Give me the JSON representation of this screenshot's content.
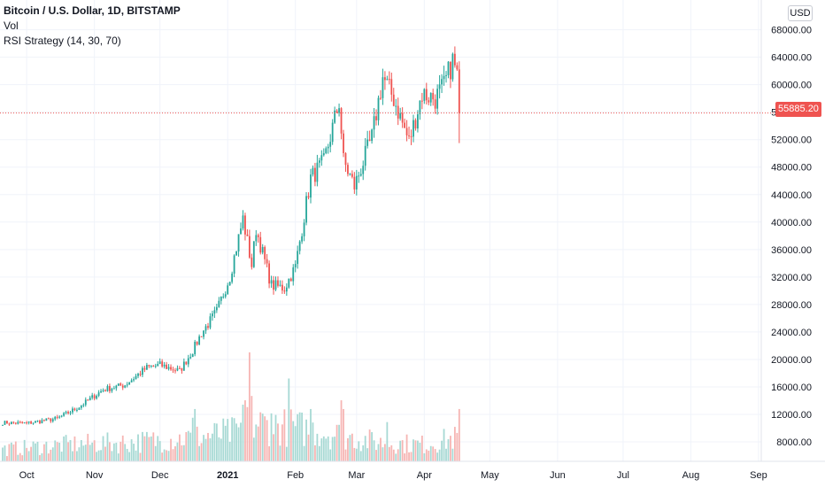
{
  "legend": {
    "title": "Bitcoin / U.S. Dollar, 1D, BITSTAMP",
    "line2": "Vol",
    "line3": "RSI Strategy (14, 30, 70)"
  },
  "scale": {
    "currency": "USD"
  },
  "last_price_label": "55885.20",
  "colors": {
    "up": "#26a69a",
    "down": "#ef5350",
    "up_vol": "#a7d9d4",
    "down_vol": "#f6b5b3",
    "grid": "#f0f3fa",
    "price_line": "#ef5350"
  },
  "chart_data": {
    "type": "candlestick",
    "series_name": "Bitcoin / U.S. Dollar",
    "ylim": [
      6000,
      70000
    ],
    "yticks": [
      "68000.00",
      "64000.00",
      "60000.00",
      "56000.00",
      "52000.00",
      "48000.00",
      "44000.00",
      "40000.00",
      "36000.00",
      "32000.00",
      "28000.00",
      "24000.00",
      "20000.00",
      "16000.00",
      "12000.00",
      "8000.00"
    ],
    "xticks": [
      {
        "label": "Oct",
        "bold": false
      },
      {
        "label": "Nov",
        "bold": false
      },
      {
        "label": "Dec",
        "bold": false
      },
      {
        "label": "2021",
        "bold": true
      },
      {
        "label": "Feb",
        "bold": false
      },
      {
        "label": "Mar",
        "bold": false
      },
      {
        "label": "Apr",
        "bold": false
      },
      {
        "label": "May",
        "bold": false
      },
      {
        "label": "Jun",
        "bold": false
      },
      {
        "label": "Jul",
        "bold": false
      },
      {
        "label": "Aug",
        "bold": false
      },
      {
        "label": "Sep",
        "bold": false
      }
    ],
    "last_price": 55885.2,
    "close_anchors": [
      [
        "2020-09-20",
        10800
      ],
      [
        "2020-10-01",
        10700
      ],
      [
        "2020-10-15",
        11400
      ],
      [
        "2020-10-25",
        13100
      ],
      [
        "2020-11-05",
        15600
      ],
      [
        "2020-11-15",
        16300
      ],
      [
        "2020-11-25",
        18800
      ],
      [
        "2020-12-01",
        19200
      ],
      [
        "2020-12-10",
        18300
      ],
      [
        "2020-12-16",
        21300
      ],
      [
        "2020-12-20",
        23800
      ],
      [
        "2020-12-27",
        27000
      ],
      [
        "2021-01-02",
        32100
      ],
      [
        "2021-01-08",
        40500
      ],
      [
        "2021-01-12",
        33700
      ],
      [
        "2021-01-14",
        39000
      ],
      [
        "2021-01-21",
        30800
      ],
      [
        "2021-01-27",
        30400
      ],
      [
        "2021-02-01",
        33500
      ],
      [
        "2021-02-08",
        46400
      ],
      [
        "2021-02-14",
        48700
      ],
      [
        "2021-02-21",
        57500
      ],
      [
        "2021-02-23",
        48900
      ],
      [
        "2021-02-28",
        45200
      ],
      [
        "2021-03-08",
        52300
      ],
      [
        "2021-03-13",
        61100
      ],
      [
        "2021-03-18",
        58000
      ],
      [
        "2021-03-25",
        51700
      ],
      [
        "2021-03-31",
        58700
      ],
      [
        "2021-04-06",
        58000
      ],
      [
        "2021-04-10",
        59800
      ],
      [
        "2021-04-14",
        63500
      ],
      [
        "2021-04-16",
        61400
      ],
      [
        "2021-04-17",
        55885
      ]
    ],
    "volume_anchors": [
      [
        "2020-09-20",
        2.5
      ],
      [
        "2020-10-20",
        3.5
      ],
      [
        "2020-11-20",
        4.0
      ],
      [
        "2020-12-17",
        5.0
      ],
      [
        "2021-01-04",
        6.0
      ],
      [
        "2021-01-11",
        8.0
      ],
      [
        "2021-02-10",
        6.5
      ],
      [
        "2021-03-10",
        4.0
      ],
      [
        "2021-04-01",
        3.5
      ],
      [
        "2021-04-17",
        5.0
      ]
    ],
    "volume_peaks": [
      [
        "2020-12-16",
        10
      ],
      [
        "2020-12-17",
        12
      ],
      [
        "2021-01-08",
        13
      ],
      [
        "2021-01-09",
        14
      ],
      [
        "2021-01-11",
        25
      ],
      [
        "2021-01-12",
        15
      ],
      [
        "2021-01-21",
        11
      ],
      [
        "2021-01-29",
        19
      ],
      [
        "2021-02-08",
        12
      ],
      [
        "2021-02-22",
        14
      ],
      [
        "2021-02-23",
        12
      ],
      [
        "2021-03-15",
        9
      ],
      [
        "2021-04-17",
        12
      ]
    ],
    "volume_max": 26
  }
}
